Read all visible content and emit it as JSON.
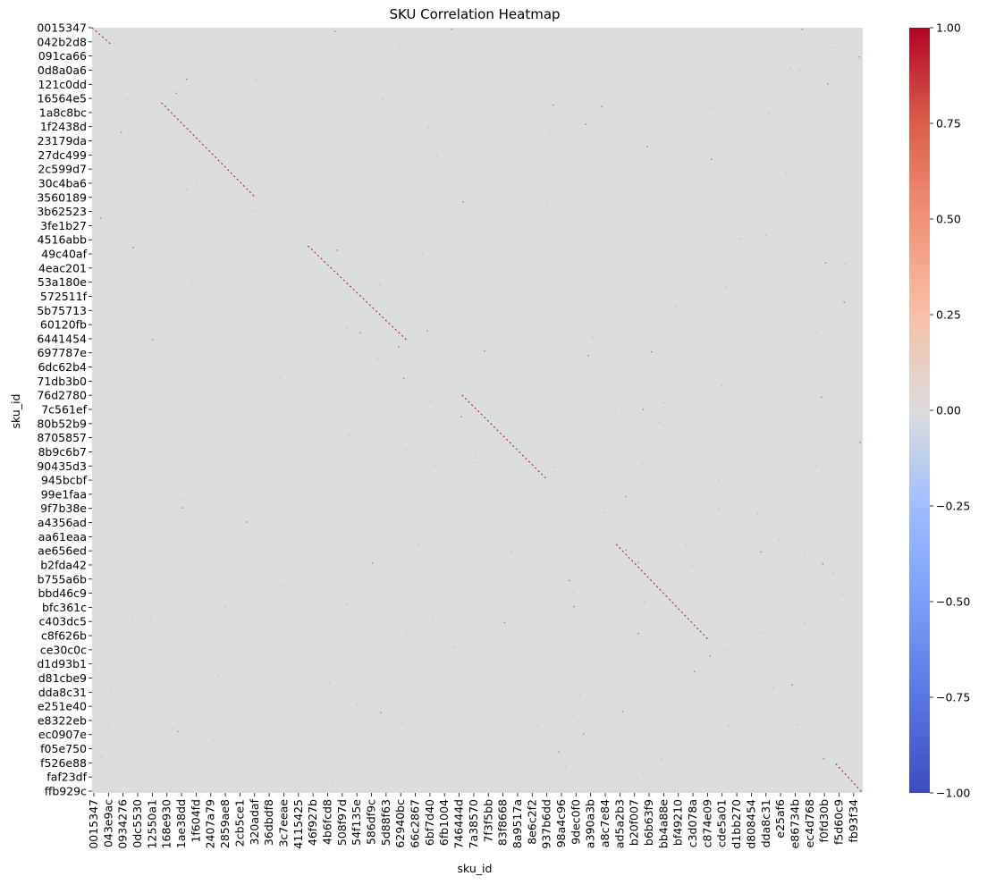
{
  "chart_data": {
    "type": "heatmap",
    "title": "SKU Correlation Heatmap",
    "xlabel": "sku_id",
    "ylabel": "sku_id",
    "colormap": "coolwarm",
    "background_value": 0.0,
    "background_color": "#dcdddd",
    "diagonal_color": "#b40426",
    "x_tick_labels": [
      "0015347",
      "043e9ac",
      "0934276",
      "0dc5530",
      "12550a1",
      "168e930",
      "1ae38dd",
      "1f604fd",
      "2407a79",
      "2859ae8",
      "2cb5ce1",
      "320adaf",
      "36dbdf8",
      "3c7eeae",
      "4115425",
      "46f927b",
      "4b6fcd8",
      "508f97d",
      "54f135e",
      "586df9c",
      "5d88f63",
      "62940bc",
      "66c2867",
      "6bf7d40",
      "6fb1004",
      "746444d",
      "7a38570",
      "7f3f5bb",
      "83f8668",
      "8a9517a",
      "8e6c2f2",
      "937b6dd",
      "98a4c96",
      "9dec0f0",
      "a390a3b",
      "a8c7e84",
      "ad5a2b3",
      "b20f007",
      "b6b63f9",
      "bb4a88e",
      "bf49210",
      "c3d078a",
      "c874e09",
      "cde5a01",
      "d1bb270",
      "d808454",
      "dda8c31",
      "e25af6",
      "e86734b",
      "ec4d768",
      "f0fd30b",
      "f5d60c9",
      "fb93f34"
    ],
    "y_tick_labels": [
      "0015347",
      "042b2d8",
      "091ca66",
      "0d8a0a6",
      "121c0dd",
      "16564e5",
      "1a8c8bc",
      "1f2438d",
      "23179da",
      "27dc499",
      "2c599d7",
      "30c4ba6",
      "3560189",
      "3b62523",
      "3fe1b27",
      "4516abb",
      "49c40af",
      "4eac201",
      "53a180e",
      "572511f",
      "5b75713",
      "60120fb",
      "6441454",
      "697787e",
      "6dc62b4",
      "71db3b0",
      "76d2780",
      "7c561ef",
      "80b52b9",
      "8705857",
      "8b9c6b7",
      "90435d3",
      "945bcbf",
      "99e1faa",
      "9f7b38e",
      "a4356ad",
      "aa61eaa",
      "ae656ed",
      "b2fda42",
      "b755a6b",
      "bbd46c9",
      "bfc361c",
      "c403dc5",
      "c8f626b",
      "ce30c0c",
      "d1d93b1",
      "d81cbe9",
      "dda8c31",
      "e251e40",
      "e8322eb",
      "ec0907e",
      "f05e750",
      "f526e88",
      "faf23df",
      "ffb929c"
    ],
    "colorbar": {
      "range": [
        -1.0,
        1.0
      ],
      "ticks": [
        "1.00",
        "0.75",
        "0.50",
        "0.25",
        "0.00",
        "−0.25",
        "−0.50",
        "−0.75",
        "−1.00"
      ]
    },
    "diagonal_segments": [
      {
        "x_range": [
          0.0,
          0.025
        ],
        "y_range": [
          0.0,
          0.022
        ],
        "value": 1.0
      },
      {
        "x_range": [
          0.09,
          0.21
        ],
        "y_range": [
          0.098,
          0.22
        ],
        "value": 1.0
      },
      {
        "x_range": [
          0.28,
          0.41
        ],
        "y_range": [
          0.285,
          0.41
        ],
        "value": 1.0
      },
      {
        "x_range": [
          0.48,
          0.59
        ],
        "y_range": [
          0.48,
          0.59
        ],
        "value": 1.0
      },
      {
        "x_range": [
          0.68,
          0.8
        ],
        "y_range": [
          0.675,
          0.8
        ],
        "value": 1.0
      },
      {
        "x_range": [
          0.965,
          1.0
        ],
        "y_range": [
          0.962,
          1.0
        ],
        "value": 1.0
      }
    ]
  }
}
